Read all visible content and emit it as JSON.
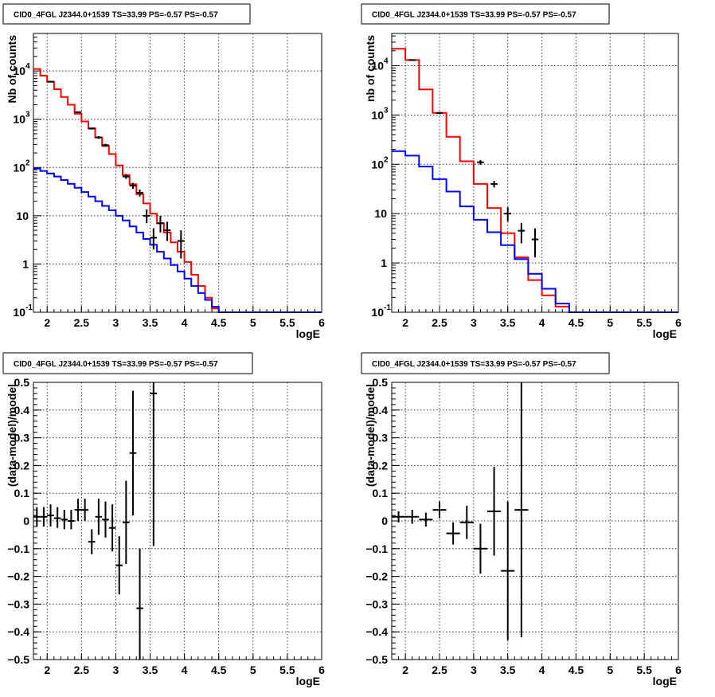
{
  "chart_data": [
    {
      "type": "line",
      "title": "CID0_4FGL J2344.0+1539 TS=33.99 PS=-0.57 PS=-0.57",
      "xlabel": "logE",
      "ylabel": "Nb of counts",
      "log_y": true,
      "xlim": [
        1.8,
        6.0
      ],
      "ylim": [
        0.1,
        60000
      ],
      "grid": true,
      "xticks": [
        "2",
        "2.5",
        "3",
        "3.5",
        "4",
        "4.5",
        "5",
        "5.5",
        "6"
      ],
      "yticks": [
        {
          "v": 0.1,
          "base": "10",
          "sup": "-1"
        },
        {
          "v": 1,
          "base": "1",
          "sup": ""
        },
        {
          "v": 10,
          "base": "10",
          "sup": ""
        },
        {
          "v": 100,
          "base": "10",
          "sup": "2"
        },
        {
          "v": 1000,
          "base": "10",
          "sup": "3"
        },
        {
          "v": 10000,
          "base": "10",
          "sup": "4"
        }
      ],
      "bin_edges": [
        1.8,
        1.9,
        2.0,
        2.1,
        2.2,
        2.3,
        2.4,
        2.5,
        2.6,
        2.7,
        2.8,
        2.9,
        3.0,
        3.1,
        3.2,
        3.3,
        3.4,
        3.5,
        3.6,
        3.7,
        3.8,
        3.9,
        4.0,
        4.1,
        4.2,
        4.3,
        4.4,
        4.5,
        4.6,
        4.7,
        4.8,
        4.9,
        5.0,
        5.1,
        5.2,
        5.3,
        5.4,
        5.5,
        5.6,
        5.7,
        5.8,
        5.9,
        6.0
      ],
      "series": [
        {
          "color": "#ff0000",
          "values": [
            11000,
            8000,
            6000,
            4200,
            2900,
            2000,
            1300,
            900,
            650,
            420,
            280,
            190,
            110,
            70,
            45,
            28,
            18,
            11,
            7,
            4.5,
            2.8,
            1.8,
            1.1,
            0.6,
            0.35,
            0.2,
            0.12,
            0.1,
            0.1,
            0.1,
            0.1,
            0.1,
            0.1,
            0.1,
            0.1,
            0.1,
            0.1,
            0.1,
            0.1,
            0.1,
            0.1,
            0.1
          ]
        },
        {
          "color": "#0000ff",
          "values": [
            95,
            85,
            75,
            65,
            55,
            46,
            38,
            31,
            25,
            20,
            16,
            13,
            10,
            8,
            6,
            4.5,
            3.3,
            2.5,
            1.8,
            1.3,
            0.95,
            0.7,
            0.5,
            0.35,
            0.25,
            0.18,
            0.13,
            0.1,
            0.1,
            0.1,
            0.1,
            0.1,
            0.1,
            0.1,
            0.1,
            0.1,
            0.1,
            0.1,
            0.1,
            0.1,
            0.1,
            0.1
          ]
        }
      ],
      "points": [
        {
          "x": 2.05,
          "y": 6000,
          "lo": 5900,
          "hi": 6100
        },
        {
          "x": 2.45,
          "y": 1400,
          "lo": 1350,
          "hi": 1450
        },
        {
          "x": 2.65,
          "y": 640,
          "lo": 610,
          "hi": 670
        },
        {
          "x": 2.75,
          "y": 420,
          "lo": 395,
          "hi": 445
        },
        {
          "x": 2.85,
          "y": 290,
          "lo": 270,
          "hi": 310
        },
        {
          "x": 3.15,
          "y": 65,
          "lo": 58,
          "hi": 73
        },
        {
          "x": 3.25,
          "y": 42,
          "lo": 36,
          "hi": 48
        },
        {
          "x": 3.35,
          "y": 30,
          "lo": 25,
          "hi": 35
        },
        {
          "x": 3.45,
          "y": 10,
          "lo": 7,
          "hi": 13.5
        },
        {
          "x": 3.55,
          "y": 3.5,
          "lo": 2,
          "hi": 5.5
        },
        {
          "x": 3.65,
          "y": 7,
          "lo": 4.5,
          "hi": 10
        },
        {
          "x": 3.75,
          "y": 5,
          "lo": 3,
          "hi": 7.5
        },
        {
          "x": 3.95,
          "y": 3,
          "lo": 1.3,
          "hi": 5
        }
      ]
    },
    {
      "type": "line",
      "title": "CID0_4FGL J2344.0+1539 TS=33.99 PS=-0.57 PS=-0.57",
      "xlabel": "logE",
      "ylabel": "nb of counts",
      "log_y": true,
      "xlim": [
        1.8,
        6.0
      ],
      "ylim": [
        0.1,
        45000
      ],
      "grid": true,
      "xticks": [
        "2",
        "2.5",
        "3",
        "3.5",
        "4",
        "4.5",
        "5",
        "5.5",
        "6"
      ],
      "yticks": [
        {
          "v": 0.1,
          "base": "10",
          "sup": "-1"
        },
        {
          "v": 1,
          "base": "1",
          "sup": ""
        },
        {
          "v": 10,
          "base": "10",
          "sup": ""
        },
        {
          "v": 100,
          "base": "10",
          "sup": "2"
        },
        {
          "v": 1000,
          "base": "10",
          "sup": "3"
        },
        {
          "v": 10000,
          "base": "10",
          "sup": "4"
        }
      ],
      "bin_edges": [
        1.8,
        2.0,
        2.2,
        2.4,
        2.6,
        2.8,
        3.0,
        3.2,
        3.4,
        3.6,
        3.8,
        4.0,
        4.2,
        4.4,
        4.6,
        4.8,
        5.0,
        5.2,
        5.4,
        5.6,
        5.8,
        6.0
      ],
      "series": [
        {
          "color": "#ff0000",
          "values": [
            22000,
            13000,
            3300,
            1100,
            360,
            115,
            40,
            13,
            4,
            1.3,
            0.45,
            0.22,
            0.13,
            0.1,
            0.1,
            0.1,
            0.1,
            0.1,
            0.1,
            0.1,
            0.1
          ]
        },
        {
          "color": "#0000ff",
          "values": [
            185,
            150,
            90,
            50,
            28,
            14,
            7.5,
            4.2,
            2.3,
            1.2,
            0.6,
            0.3,
            0.15,
            0.1,
            0.1,
            0.1,
            0.1,
            0.1,
            0.1,
            0.1,
            0.1
          ]
        }
      ],
      "points": [
        {
          "x": 2.1,
          "y": 13000,
          "lo": 12800,
          "hi": 13200
        },
        {
          "x": 2.5,
          "y": 1100,
          "lo": 1060,
          "hi": 1140
        },
        {
          "x": 3.1,
          "y": 110,
          "lo": 98,
          "hi": 122
        },
        {
          "x": 3.3,
          "y": 40,
          "lo": 34,
          "hi": 46
        },
        {
          "x": 3.5,
          "y": 10,
          "lo": 7,
          "hi": 13.5
        },
        {
          "x": 3.7,
          "y": 4.5,
          "lo": 2.5,
          "hi": 6.5
        },
        {
          "x": 3.9,
          "y": 3,
          "lo": 1.3,
          "hi": 5
        }
      ]
    },
    {
      "type": "scatter",
      "title": "CID0_4FGL J2344.0+1539 TS=33.99 PS=-0.57 PS=-0.57",
      "xlabel": "logE",
      "ylabel": "(data-model)/model",
      "log_y": false,
      "xlim": [
        1.8,
        6.0
      ],
      "ylim": [
        -0.5,
        0.5
      ],
      "grid": true,
      "xticks": [
        "2",
        "2.5",
        "3",
        "3.5",
        "4",
        "4.5",
        "5",
        "5.5",
        "6"
      ],
      "yticks": [
        "−0.5",
        "−0.4",
        "−0.3",
        "−0.2",
        "−0.1",
        "0",
        "0.1",
        "0.2",
        "0.3",
        "0.4",
        "0.5"
      ],
      "points": [
        {
          "x": 1.85,
          "y": 0.015,
          "lo": -0.02,
          "hi": 0.05,
          "xerr": 0.05
        },
        {
          "x": 1.95,
          "y": 0.015,
          "lo": -0.02,
          "hi": 0.05,
          "xerr": 0.05
        },
        {
          "x": 2.05,
          "y": 0.02,
          "lo": -0.02,
          "hi": 0.06,
          "xerr": 0.05
        },
        {
          "x": 2.15,
          "y": 0.01,
          "lo": -0.025,
          "hi": 0.05,
          "xerr": 0.05
        },
        {
          "x": 2.25,
          "y": 0.005,
          "lo": -0.03,
          "hi": 0.04,
          "xerr": 0.05
        },
        {
          "x": 2.35,
          "y": 0.0,
          "lo": -0.03,
          "hi": 0.04,
          "xerr": 0.05
        },
        {
          "x": 2.45,
          "y": 0.04,
          "lo": 0.0,
          "hi": 0.08,
          "xerr": 0.05
        },
        {
          "x": 2.55,
          "y": 0.04,
          "lo": 0.0,
          "hi": 0.08,
          "xerr": 0.05
        },
        {
          "x": 2.65,
          "y": -0.075,
          "lo": -0.12,
          "hi": -0.03,
          "xerr": 0.05
        },
        {
          "x": 2.75,
          "y": 0.015,
          "lo": -0.05,
          "hi": 0.08,
          "xerr": 0.05
        },
        {
          "x": 2.85,
          "y": 0.005,
          "lo": -0.06,
          "hi": 0.07,
          "xerr": 0.05
        },
        {
          "x": 2.95,
          "y": -0.025,
          "lo": -0.11,
          "hi": 0.06,
          "xerr": 0.05
        },
        {
          "x": 3.05,
          "y": -0.16,
          "lo": -0.265,
          "hi": -0.055,
          "xerr": 0.05
        },
        {
          "x": 3.15,
          "y": -0.005,
          "lo": -0.155,
          "hi": 0.145,
          "xerr": 0.05
        },
        {
          "x": 3.25,
          "y": 0.245,
          "lo": 0.02,
          "hi": 0.47,
          "xerr": 0.05
        },
        {
          "x": 3.35,
          "y": -0.315,
          "lo": -0.5,
          "hi": -0.1,
          "xerr": 0.05
        },
        {
          "x": 3.55,
          "y": 0.46,
          "lo": -0.09,
          "hi": 0.5,
          "xerr": 0.05
        }
      ]
    },
    {
      "type": "scatter",
      "title": "CID0_4FGL J2344.0+1539 TS=33.99 PS=-0.57 PS=-0.57",
      "xlabel": "logE",
      "ylabel": "(data-model)/model",
      "log_y": false,
      "xlim": [
        1.8,
        6.0
      ],
      "ylim": [
        -0.5,
        0.5
      ],
      "grid": true,
      "xticks": [
        "2",
        "2.5",
        "3",
        "3.5",
        "4",
        "4.5",
        "5",
        "5.5",
        "6"
      ],
      "yticks": [
        "−0.5",
        "−0.4",
        "−0.3",
        "−0.2",
        "−0.1",
        "0",
        "0.1",
        "0.2",
        "0.3",
        "0.4",
        "0.5"
      ],
      "points": [
        {
          "x": 1.9,
          "y": 0.015,
          "lo": -0.005,
          "hi": 0.035,
          "xerr": 0.1
        },
        {
          "x": 2.1,
          "y": 0.015,
          "lo": -0.01,
          "hi": 0.04,
          "xerr": 0.1
        },
        {
          "x": 2.3,
          "y": 0.005,
          "lo": -0.02,
          "hi": 0.03,
          "xerr": 0.1
        },
        {
          "x": 2.5,
          "y": 0.04,
          "lo": 0.01,
          "hi": 0.07,
          "xerr": 0.1
        },
        {
          "x": 2.7,
          "y": -0.045,
          "lo": -0.085,
          "hi": -0.005,
          "xerr": 0.1
        },
        {
          "x": 2.9,
          "y": -0.005,
          "lo": -0.065,
          "hi": 0.055,
          "xerr": 0.1
        },
        {
          "x": 3.1,
          "y": -0.1,
          "lo": -0.19,
          "hi": -0.01,
          "xerr": 0.1
        },
        {
          "x": 3.3,
          "y": 0.035,
          "lo": -0.125,
          "hi": 0.195,
          "xerr": 0.1
        },
        {
          "x": 3.5,
          "y": -0.18,
          "lo": -0.43,
          "hi": 0.07,
          "xerr": 0.1
        },
        {
          "x": 3.7,
          "y": 0.04,
          "lo": -0.42,
          "hi": 0.5,
          "xerr": 0.1
        }
      ]
    }
  ]
}
